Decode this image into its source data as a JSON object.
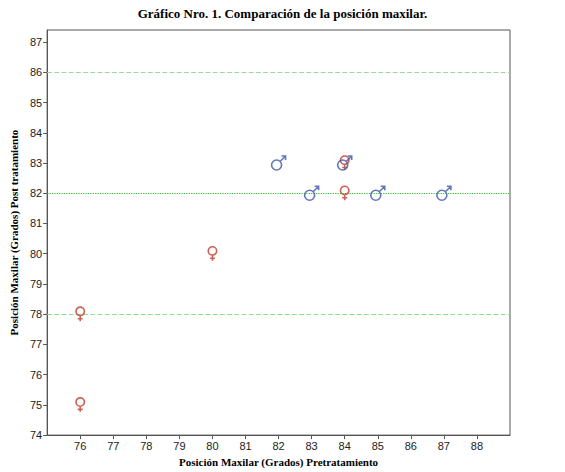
{
  "chart_data": {
    "type": "scatter",
    "title": "Gráfico Nro. 1. Comparación de la posición maxilar.",
    "x_label": "Posición Maxilar (Grados) Pretratamiento",
    "y_label": "Posición Maxilar (Grados) Post tratamiento",
    "xlim": [
      75,
      89
    ],
    "xticks": [
      76,
      77,
      78,
      79,
      80,
      81,
      82,
      83,
      84,
      85,
      86,
      87,
      88
    ],
    "ylim": [
      74,
      87.4
    ],
    "yticks": [
      74,
      75,
      76,
      77,
      78,
      79,
      80,
      81,
      82,
      83,
      84,
      85,
      86,
      87
    ],
    "grid": false,
    "series": [
      {
        "marker": "female",
        "color": "#c0392b",
        "x": [
          76,
          76,
          80,
          84,
          84
        ],
        "values": [
          78,
          75,
          80,
          82,
          83
        ]
      },
      {
        "marker": "male",
        "color": "#3a55a8",
        "x": [
          82,
          83,
          84,
          85,
          87
        ],
        "values": [
          83,
          82,
          83,
          82,
          82
        ]
      }
    ],
    "reference_lines": [
      {
        "y": 86,
        "line_style": "dashed",
        "color": "#8fe08f"
      },
      {
        "y": 82,
        "line_style": "dotted",
        "color": "#2fbf2f"
      },
      {
        "y": 78,
        "line_style": "dashed",
        "color": "#8fe08f"
      }
    ]
  }
}
